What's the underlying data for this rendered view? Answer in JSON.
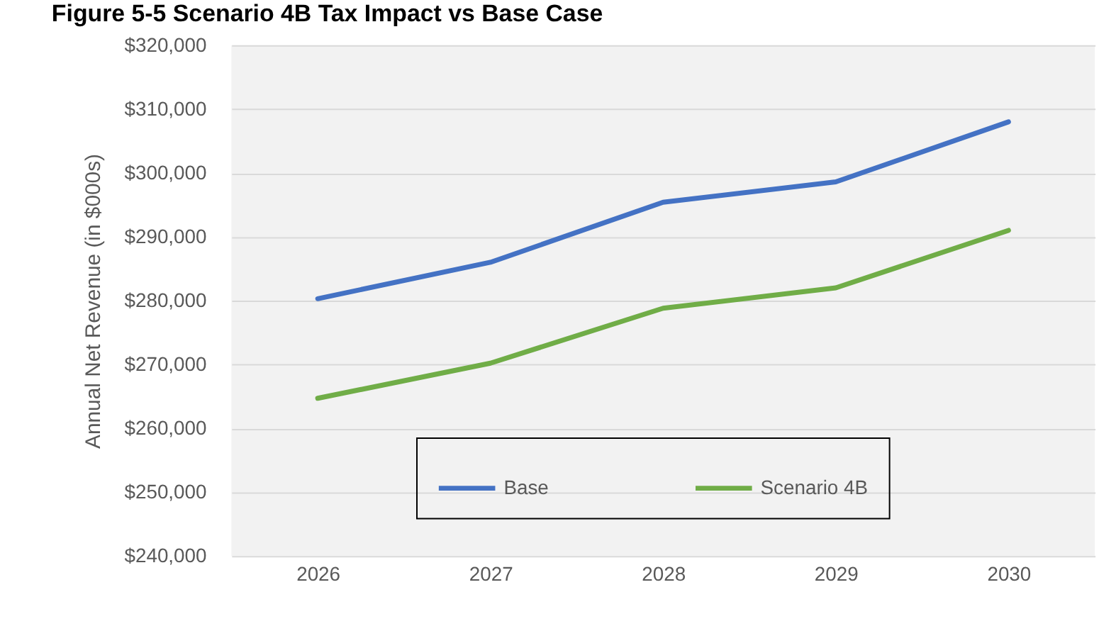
{
  "chart_data": {
    "type": "line",
    "title": "Figure 5-5 Scenario 4B Tax Impact vs Base Case",
    "ylabel": "Annual Net Revenue (in $000s)",
    "categories": [
      "2026",
      "2027",
      "2028",
      "2029",
      "2030"
    ],
    "series": [
      {
        "name": "Base",
        "color": "#4472c4",
        "values": [
          280300,
          286000,
          295400,
          298600,
          308000
        ]
      },
      {
        "name": "Scenario 4B",
        "color": "#70ad47",
        "values": [
          264700,
          270200,
          278800,
          282000,
          291000
        ]
      }
    ],
    "ylim": [
      240000,
      320000
    ],
    "yticks": [
      {
        "value": 240000,
        "label": "$240,000"
      },
      {
        "value": 250000,
        "label": "$250,000"
      },
      {
        "value": 260000,
        "label": "$260,000"
      },
      {
        "value": 270000,
        "label": "$270,000"
      },
      {
        "value": 280000,
        "label": "$280,000"
      },
      {
        "value": 290000,
        "label": "$290,000"
      },
      {
        "value": 300000,
        "label": "$300,000"
      },
      {
        "value": 310000,
        "label": "$310,000"
      },
      {
        "value": 320000,
        "label": "$320,000"
      }
    ],
    "grid": "y",
    "legend": "bottom",
    "marker": "none",
    "line_style": "solid"
  }
}
